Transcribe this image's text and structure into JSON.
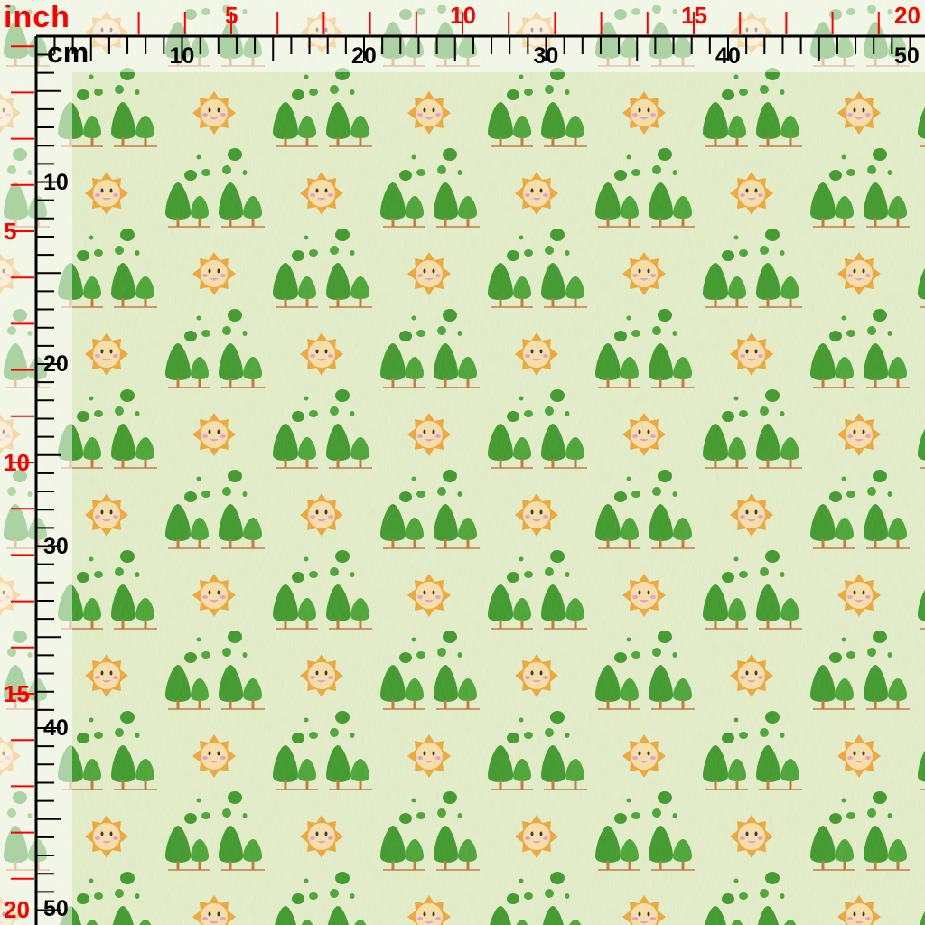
{
  "rulers": {
    "inch": {
      "unit_label": "inch",
      "labels": [
        "5",
        "10",
        "15",
        "20"
      ],
      "color": "#ff0000"
    },
    "cm": {
      "unit_label": "cm",
      "labels": [
        "10",
        "20",
        "30",
        "40",
        "50"
      ],
      "color": "#000000"
    }
  },
  "fabric": {
    "background": "#e4efc9",
    "motifs": [
      "tree-group-icon",
      "sun-icon"
    ],
    "colors": {
      "tree": "#3f9a2a",
      "trunk": "#c07a3a",
      "sun": "#f0a838",
      "face": "#f8e0a8",
      "cheek": "#e0a0d8"
    }
  }
}
